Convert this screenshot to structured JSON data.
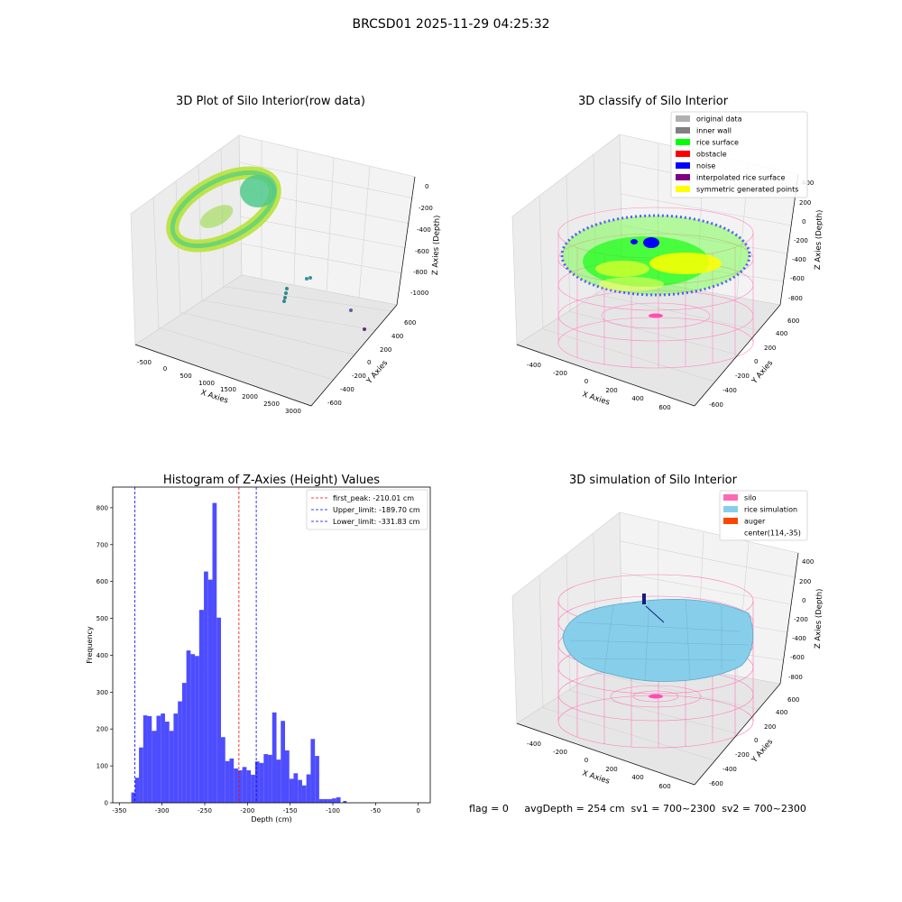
{
  "figure_title": "BRCSD01 2025-11-29 04:25:32",
  "panels": {
    "raw": {
      "title": "3D Plot of Silo Interior(row data)",
      "xlabel": "X Axies",
      "ylabel": "Y Axies",
      "zlabel": "Z Axies (Depth)",
      "x_ticks": [
        "-500",
        "0",
        "500",
        "1000",
        "1500",
        "2000",
        "2500",
        "3000"
      ],
      "y_ticks": [
        "600",
        "400",
        "200",
        "0",
        "-200",
        "-400",
        "-600"
      ],
      "z_ticks": [
        "0",
        "-200",
        "-400",
        "-600",
        "-800",
        "-1000"
      ]
    },
    "classify": {
      "title": "3D classify of Silo Interior",
      "xlabel": "X Axies",
      "ylabel": "Y Axies",
      "zlabel": "Z Axies (Depth)",
      "x_ticks": [
        "-400",
        "-200",
        "0",
        "200",
        "400",
        "600"
      ],
      "y_ticks": [
        "600",
        "400",
        "200",
        "0",
        "-200",
        "-400",
        "-600"
      ],
      "z_ticks": [
        "400",
        "200",
        "0",
        "-200",
        "-400",
        "-600",
        "-800"
      ],
      "legend": [
        {
          "label": "original data",
          "color": "#b0b0b0"
        },
        {
          "label": "inner wall",
          "color": "#808080"
        },
        {
          "label": "rice surface",
          "color": "#00ff00"
        },
        {
          "label": "obstacle",
          "color": "#ff0000"
        },
        {
          "label": "noise",
          "color": "#0000ff"
        },
        {
          "label": "interpolated rice surface",
          "color": "#800080"
        },
        {
          "label": "symmetric generated points",
          "color": "#ffff00"
        }
      ]
    },
    "simulation": {
      "title": "3D simulation of Silo Interior",
      "xlabel": "X Axies",
      "ylabel": "Y Axies",
      "zlabel": "Z Axies (Depth)",
      "x_ticks": [
        "-400",
        "-200",
        "0",
        "200",
        "400",
        "600"
      ],
      "y_ticks": [
        "600",
        "400",
        "200",
        "0",
        "-200",
        "-400",
        "-600"
      ],
      "z_ticks": [
        "400",
        "200",
        "0",
        "-200",
        "-400",
        "-600",
        "-800"
      ],
      "legend": [
        {
          "label": "silo",
          "color": "#ff69b4"
        },
        {
          "label": "rice simulation",
          "color": "#87ceeb"
        },
        {
          "label": "auger",
          "color": "#ff4500"
        },
        {
          "label": "center(114,-35)",
          "color": ""
        }
      ]
    },
    "status_line": "flag = 0     avgDepth = 254 cm  sv1 = 700~2300  sv2 = 700~2300"
  },
  "chart_data": [
    {
      "type": "histogram",
      "title": "Histogram of Z-Axies (Height) Values",
      "xlabel": "Depth (cm)",
      "ylabel": "Frequency",
      "xlim": [
        -350,
        0
      ],
      "ylim": [
        0,
        850
      ],
      "x_ticks": [
        -350,
        -300,
        -250,
        -200,
        -150,
        -100,
        -50,
        0
      ],
      "y_ticks": [
        0,
        100,
        200,
        300,
        400,
        500,
        600,
        700,
        800
      ],
      "bar_color": "#4d4dff",
      "bins": [
        {
          "x0": -336,
          "x1": -331.5,
          "count": 28
        },
        {
          "x0": -331.5,
          "x1": -327,
          "count": 68
        },
        {
          "x0": -327,
          "x1": -322,
          "count": 150
        },
        {
          "x0": -322,
          "x1": -317,
          "count": 237
        },
        {
          "x0": -317,
          "x1": -312,
          "count": 235
        },
        {
          "x0": -312,
          "x1": -306.5,
          "count": 195
        },
        {
          "x0": -306.5,
          "x1": -301.5,
          "count": 236
        },
        {
          "x0": -301.5,
          "x1": -296.5,
          "count": 242
        },
        {
          "x0": -296.5,
          "x1": -291.5,
          "count": 220
        },
        {
          "x0": -291.5,
          "x1": -286.5,
          "count": 195
        },
        {
          "x0": -286.5,
          "x1": -281.5,
          "count": 242
        },
        {
          "x0": -281.5,
          "x1": -276.5,
          "count": 275
        },
        {
          "x0": -276.5,
          "x1": -271.5,
          "count": 325
        },
        {
          "x0": -271.5,
          "x1": -266.5,
          "count": 413
        },
        {
          "x0": -266.5,
          "x1": -261.5,
          "count": 403
        },
        {
          "x0": -261.5,
          "x1": -256.5,
          "count": 398
        },
        {
          "x0": -256.5,
          "x1": -251,
          "count": 523
        },
        {
          "x0": -251,
          "x1": -246,
          "count": 627
        },
        {
          "x0": -246,
          "x1": -241,
          "count": 605
        },
        {
          "x0": -241,
          "x1": -236,
          "count": 813
        },
        {
          "x0": -236,
          "x1": -231,
          "count": 502
        },
        {
          "x0": -231,
          "x1": -226,
          "count": 178
        },
        {
          "x0": -226,
          "x1": -221,
          "count": 113
        },
        {
          "x0": -221,
          "x1": -216,
          "count": 120
        },
        {
          "x0": -216,
          "x1": -211,
          "count": 93
        },
        {
          "x0": -211,
          "x1": -206,
          "count": 88
        },
        {
          "x0": -206,
          "x1": -201,
          "count": 97
        },
        {
          "x0": -201,
          "x1": -196,
          "count": 88
        },
        {
          "x0": -196,
          "x1": -191,
          "count": 76
        },
        {
          "x0": -191,
          "x1": -186,
          "count": 112
        },
        {
          "x0": -186,
          "x1": -181,
          "count": 108
        },
        {
          "x0": -181,
          "x1": -176,
          "count": 132
        },
        {
          "x0": -176,
          "x1": -171,
          "count": 130
        },
        {
          "x0": -171,
          "x1": -166,
          "count": 245
        },
        {
          "x0": -166,
          "x1": -161,
          "count": 117
        },
        {
          "x0": -161,
          "x1": -156,
          "count": 222
        },
        {
          "x0": -156,
          "x1": -151,
          "count": 142
        },
        {
          "x0": -151,
          "x1": -146,
          "count": 65
        },
        {
          "x0": -146,
          "x1": -141,
          "count": 80
        },
        {
          "x0": -141,
          "x1": -136,
          "count": 62
        },
        {
          "x0": -136,
          "x1": -131,
          "count": 47
        },
        {
          "x0": -131,
          "x1": -126,
          "count": 77
        },
        {
          "x0": -126,
          "x1": -121,
          "count": 173
        },
        {
          "x0": -121,
          "x1": -116,
          "count": 127
        },
        {
          "x0": -116,
          "x1": -111,
          "count": 10
        },
        {
          "x0": -111,
          "x1": -106,
          "count": 10
        },
        {
          "x0": -106,
          "x1": -101,
          "count": 10
        },
        {
          "x0": -101,
          "x1": -96,
          "count": 12
        },
        {
          "x0": -96,
          "x1": -91,
          "count": 15
        },
        {
          "x0": -88,
          "x1": -84,
          "count": 5
        }
      ],
      "lines": [
        {
          "label": "first_peak: -210.01 cm",
          "x": -210.01,
          "color": "#ff0000"
        },
        {
          "label": "Upper_limit: -189.70 cm",
          "x": -189.7,
          "color": "#0000ff"
        },
        {
          "label": "Lower_limit: -331.83 cm",
          "x": -331.83,
          "color": "#0000ff"
        }
      ],
      "legend_position": "top-right",
      "grid": false
    }
  ]
}
